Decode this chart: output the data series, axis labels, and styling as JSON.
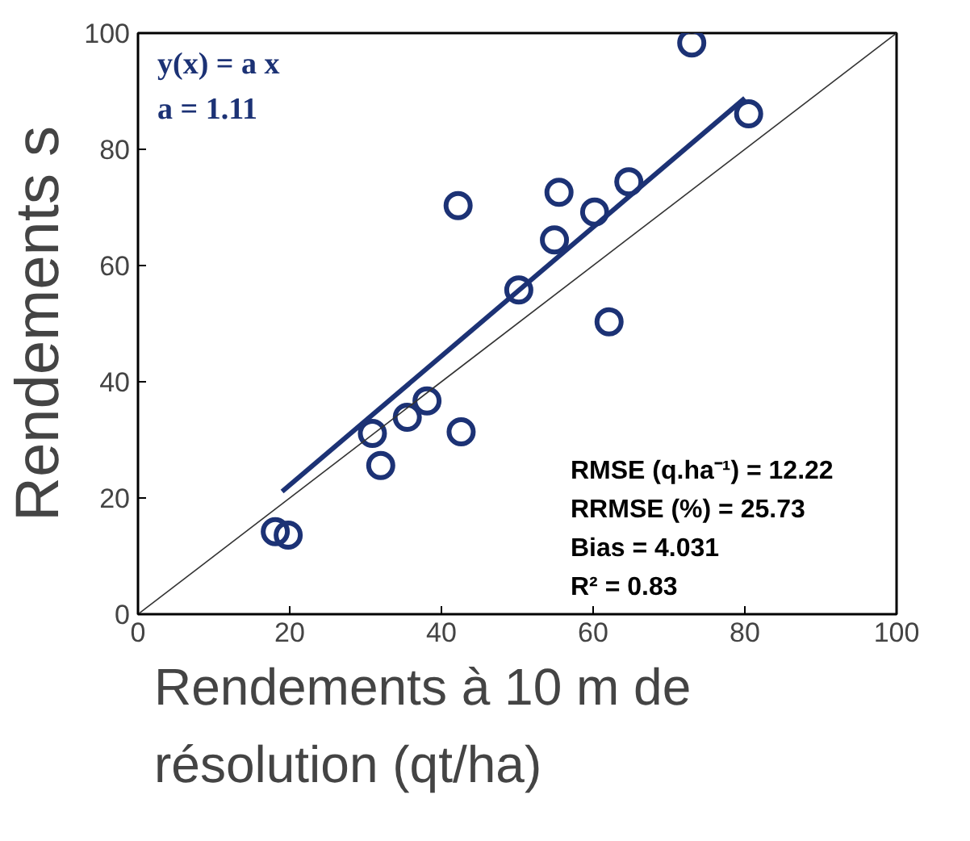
{
  "chart_data": {
    "type": "scatter",
    "ylabel": "Rendements s",
    "xlabel": "Rendements à 10 m de\nrésolution (qt/ha)",
    "x": [
      73,
      80.5,
      42.2,
      55.5,
      60.2,
      64.7,
      54.9,
      50.2,
      62.1,
      30.9,
      32,
      35.5,
      38.1,
      42.6,
      18.1,
      19.8
    ],
    "series": [
      {
        "color": "#1c3275",
        "values": [
          98.3,
          86.1,
          70.3,
          72.6,
          69.2,
          74.4,
          64.4,
          55.8,
          50.3,
          31.1,
          25.6,
          33.9,
          36.7,
          31.4,
          14.2,
          13.6
        ]
      },
      {
        "type": "line",
        "marker": "none",
        "color": "#1c3275",
        "x": [
          19,
          80
        ],
        "values": [
          21.1,
          88.8
        ]
      },
      {
        "type": "line",
        "marker": "none",
        "color": "#333333",
        "x": [
          0,
          100
        ],
        "values": [
          0,
          100
        ]
      }
    ],
    "marker": "circle",
    "line_style": "solid",
    "xlim": [
      0,
      100
    ],
    "ylim": [
      0,
      100
    ],
    "xticks": [
      0,
      20,
      40,
      60,
      80,
      100
    ],
    "yticks": [
      0,
      20,
      40,
      60,
      80,
      100
    ],
    "grid": false,
    "annotations": [
      "y(x) = a x",
      "a = 1.11",
      "RMSE (q.ha⁻¹) = 12.22",
      "RRMSE (%) = 25.73",
      "Bias = 4.031",
      "R² = 0.83"
    ]
  }
}
